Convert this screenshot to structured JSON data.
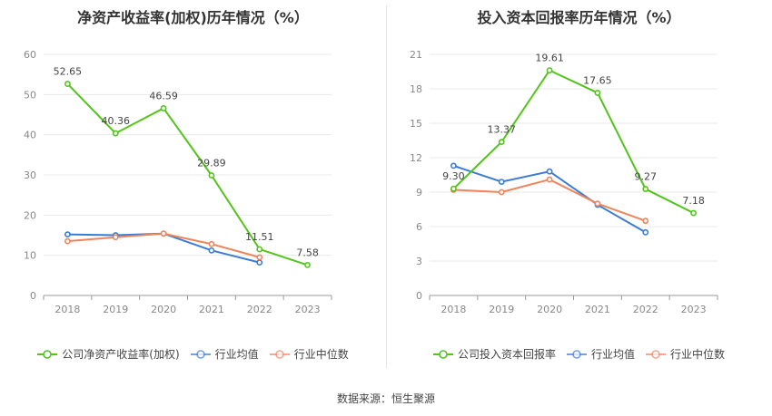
{
  "source": "数据来源：恒生聚源",
  "colors": {
    "company": "#52c41a",
    "industry_avg": "#3a7bd5",
    "industry_median": "#f0845c",
    "grid": "#e8e8e8",
    "axis": "#999999"
  },
  "chart_data": [
    {
      "type": "line",
      "title": "净资产收益率(加权)历年情况（%）",
      "categories": [
        "2018",
        "2019",
        "2020",
        "2021",
        "2022",
        "2023"
      ],
      "ylim": [
        0,
        60
      ],
      "yticks": [
        0,
        10,
        20,
        30,
        40,
        50,
        60
      ],
      "grid": true,
      "legend_position": "bottom",
      "series": [
        {
          "name": "公司净资产收益率(加权)",
          "color": "#52c41a",
          "values": [
            52.65,
            40.36,
            46.59,
            29.89,
            11.51,
            7.58
          ],
          "labels": [
            "52.65",
            "40.36",
            "46.59",
            "29.89",
            "11.51",
            "7.58"
          ]
        },
        {
          "name": "行业均值",
          "color": "#3a7bd5",
          "values": [
            15.2,
            15.0,
            15.4,
            11.2,
            8.2,
            null
          ]
        },
        {
          "name": "行业中位数",
          "color": "#f0845c",
          "values": [
            13.5,
            14.5,
            15.4,
            12.8,
            9.5,
            null
          ]
        }
      ]
    },
    {
      "type": "line",
      "title": "投入资本回报率历年情况（%）",
      "categories": [
        "2018",
        "2019",
        "2020",
        "2021",
        "2022",
        "2023"
      ],
      "ylim": [
        0,
        21
      ],
      "yticks": [
        0,
        3,
        6,
        9,
        12,
        15,
        18,
        21
      ],
      "grid": true,
      "legend_position": "bottom",
      "series": [
        {
          "name": "公司投入资本回报率",
          "color": "#52c41a",
          "values": [
            9.3,
            13.37,
            19.61,
            17.65,
            9.27,
            7.18
          ],
          "labels": [
            "9.30",
            "13.37",
            "19.61",
            "17.65",
            "9.27",
            "7.18"
          ]
        },
        {
          "name": "行业均值",
          "color": "#3a7bd5",
          "values": [
            11.3,
            9.9,
            10.8,
            7.9,
            5.5,
            null
          ]
        },
        {
          "name": "行业中位数",
          "color": "#f0845c",
          "values": [
            9.2,
            9.0,
            10.1,
            8.0,
            6.5,
            null
          ]
        }
      ]
    }
  ]
}
